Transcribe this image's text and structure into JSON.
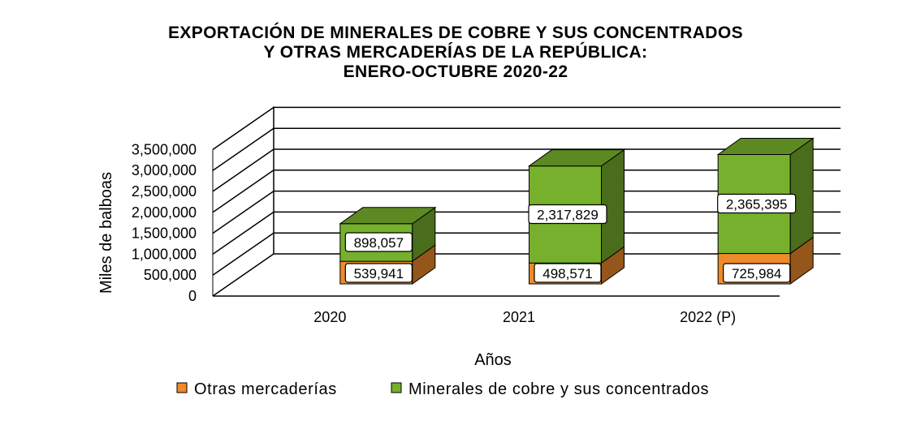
{
  "chart_data": {
    "type": "bar",
    "stacked": true,
    "three_d": true,
    "title_lines": [
      "EXPORTACIÓN  DE MINERALES  DE COBRE  Y SUS CONCENTRADOS",
      "Y OTRAS MERCADERÍAS  DE LA REPÚBLICA:",
      "ENERO-OCTUBRE  2020-22"
    ],
    "xlabel": "Años",
    "ylabel": "Miles de balboas",
    "categories": [
      "2020",
      "2021",
      "2022 (P)"
    ],
    "ylim": [
      0,
      3500000
    ],
    "y_ticks": [
      {
        "value": 0,
        "label": "0"
      },
      {
        "value": 500000,
        "label": "500,000"
      },
      {
        "value": 1000000,
        "label": "1,000,000"
      },
      {
        "value": 1500000,
        "label": "1,500,000"
      },
      {
        "value": 2000000,
        "label": "2,000,000"
      },
      {
        "value": 2500000,
        "label": "2,500,000"
      },
      {
        "value": 3000000,
        "label": "3,000,000"
      },
      {
        "value": 3500000,
        "label": "3,500,000"
      }
    ],
    "series": [
      {
        "name": "Otras mercaderías",
        "values": [
          539941,
          498571,
          725984
        ],
        "labels": [
          "539,941",
          "498,571",
          "725,984"
        ],
        "color": "#ee8a2a"
      },
      {
        "name": "Minerales de cobre y sus concentrados",
        "values": [
          898057,
          2317829,
          2365395
        ],
        "labels": [
          "898,057",
          "2,317,829",
          "2,365,395"
        ],
        "color": "#77b02c"
      }
    ],
    "grid": true,
    "legend_position": "bottom"
  }
}
